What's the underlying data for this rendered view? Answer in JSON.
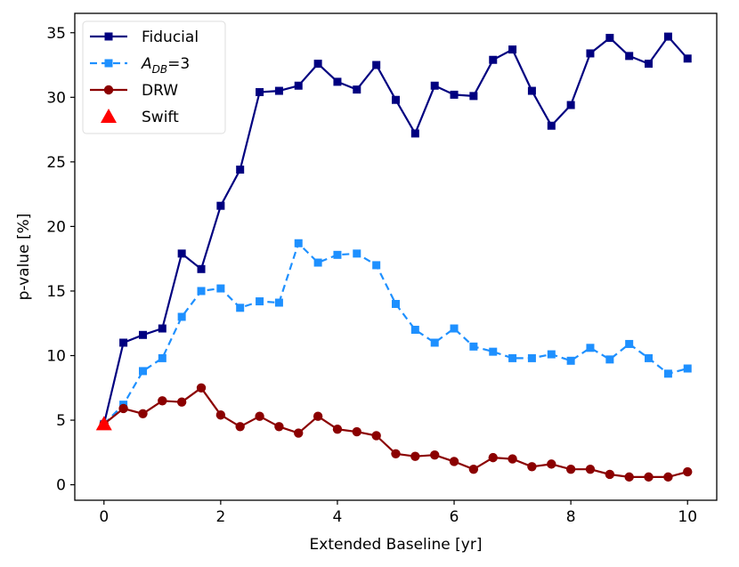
{
  "chart_data": {
    "type": "line",
    "title": "",
    "xlabel": "Extended Baseline [yr]",
    "ylabel": "p-value [%]",
    "xlim": [
      -0.5,
      10.5
    ],
    "ylim": [
      -1.2,
      36.5
    ],
    "xticks": [
      0,
      2,
      4,
      6,
      8,
      10
    ],
    "yticks": [
      0,
      5,
      10,
      15,
      20,
      25,
      30,
      35
    ],
    "grid": false,
    "legend_position": "top-left",
    "series": [
      {
        "name": "Fiducial",
        "color": "#000080",
        "marker": "square",
        "linestyle": "solid",
        "x": [
          0,
          0.333,
          0.667,
          1.0,
          1.333,
          1.667,
          2.0,
          2.333,
          2.667,
          3.0,
          3.333,
          3.667,
          4.0,
          4.333,
          4.667,
          5.0,
          5.333,
          5.667,
          6.0,
          6.333,
          6.667,
          7.0,
          7.333,
          7.667,
          8.0,
          8.333,
          8.667,
          9.0,
          9.333,
          9.667,
          10.0
        ],
        "y": [
          4.7,
          11.0,
          11.6,
          12.1,
          17.9,
          16.7,
          21.6,
          24.4,
          30.4,
          30.5,
          30.9,
          32.6,
          31.2,
          30.6,
          32.5,
          29.8,
          27.2,
          30.9,
          30.2,
          30.1,
          32.9,
          33.7,
          30.5,
          27.8,
          29.4,
          33.4,
          34.6,
          33.2,
          32.6,
          34.7,
          33.0
        ]
      },
      {
        "name": "A_DB=3",
        "label_main": "A",
        "label_sub": "DB",
        "label_tail": "=3",
        "color": "#1E90FF",
        "marker": "square",
        "linestyle": "dashed",
        "x": [
          0,
          0.333,
          0.667,
          1.0,
          1.333,
          1.667,
          2.0,
          2.333,
          2.667,
          3.0,
          3.333,
          3.667,
          4.0,
          4.333,
          4.667,
          5.0,
          5.333,
          5.667,
          6.0,
          6.333,
          6.667,
          7.0,
          7.333,
          7.667,
          8.0,
          8.333,
          8.667,
          9.0,
          9.333,
          9.667,
          10.0
        ],
        "y": [
          4.7,
          6.2,
          8.8,
          9.8,
          13.0,
          15.0,
          15.2,
          13.7,
          14.2,
          14.1,
          18.7,
          17.2,
          17.8,
          17.9,
          17.0,
          14.0,
          12.0,
          11.0,
          12.1,
          10.7,
          10.3,
          9.8,
          9.8,
          10.1,
          9.6,
          10.6,
          9.7,
          10.9,
          9.8,
          8.6,
          9.0
        ]
      },
      {
        "name": "DRW",
        "color": "#8B0000",
        "marker": "circle",
        "linestyle": "solid",
        "x": [
          0,
          0.333,
          0.667,
          1.0,
          1.333,
          1.667,
          2.0,
          2.333,
          2.667,
          3.0,
          3.333,
          3.667,
          4.0,
          4.333,
          4.667,
          5.0,
          5.333,
          5.667,
          6.0,
          6.333,
          6.667,
          7.0,
          7.333,
          7.667,
          8.0,
          8.333,
          8.667,
          9.0,
          9.333,
          9.667,
          10.0
        ],
        "y": [
          4.7,
          5.9,
          5.5,
          6.5,
          6.4,
          7.5,
          5.4,
          4.5,
          5.3,
          4.5,
          4.0,
          5.3,
          4.3,
          4.1,
          3.8,
          2.4,
          2.2,
          2.3,
          1.8,
          1.2,
          2.1,
          2.0,
          1.4,
          1.6,
          1.2,
          1.2,
          0.8,
          0.6,
          0.6,
          0.6,
          1.0
        ]
      },
      {
        "name": "Swift",
        "color": "#FF0000",
        "marker": "triangle",
        "linestyle": "none",
        "x": [
          0
        ],
        "y": [
          4.7
        ]
      }
    ]
  }
}
